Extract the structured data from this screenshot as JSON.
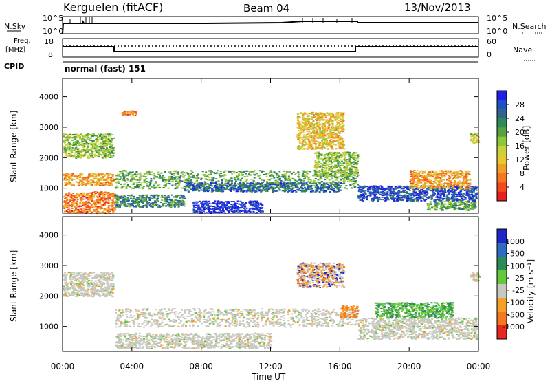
{
  "header": {
    "station": "Kerguelen (fitACF)",
    "beam": "Beam 04",
    "date": "13/Nov/2013"
  },
  "strip_labels": {
    "nsky": "N.Sky",
    "nsky_ticks": [
      "10^5",
      "10^0"
    ],
    "nsearch": "N.Search",
    "nsearch_ticks": [
      "10^5",
      "10^0"
    ],
    "freq_line1": "Freq.",
    "freq_line2": "[MHz]",
    "freq_ticks": [
      "18",
      "8"
    ],
    "nave": "Nave",
    "nave_ticks": [
      "60",
      "0"
    ],
    "cpid": "CPID",
    "cpid_value": "normal (fast) 151"
  },
  "chart_data": [
    {
      "type": "heatmap",
      "name": "power",
      "ylabel": "Slant Range [km]",
      "ylim": [
        180,
        4600
      ],
      "yticks": [
        "1000",
        "2000",
        "3000",
        "4000"
      ],
      "xlim": [
        0,
        24
      ],
      "xticks": [
        "00:00",
        "04:00",
        "08:00",
        "12:00",
        "16:00",
        "20:00",
        "00:00"
      ],
      "colorbar": {
        "label": "Power [dB]",
        "ticks": [
          "28",
          "24",
          "20",
          "16",
          "12",
          "8",
          "4"
        ],
        "colors": [
          "#1e1ee6",
          "#1e50c8",
          "#32648c",
          "#2e8b57",
          "#5aa040",
          "#8cc83c",
          "#c8d23c",
          "#e6c832",
          "#f0a028",
          "#f57820",
          "#f54a1e",
          "#e6201e"
        ]
      },
      "regions": [
        {
          "t": [
            0.0,
            2.9
          ],
          "r": [
            2000,
            2800
          ],
          "level": 6
        },
        {
          "t": [
            0.0,
            2.9
          ],
          "r": [
            1100,
            1500
          ],
          "level": 3
        },
        {
          "t": [
            0.0,
            3.0
          ],
          "r": [
            200,
            900
          ],
          "level": 2
        },
        {
          "t": [
            3.0,
            17.0
          ],
          "r": [
            1000,
            1600
          ],
          "level": 7
        },
        {
          "t": [
            7.0,
            16.0
          ],
          "r": [
            900,
            1200
          ],
          "level": 9
        },
        {
          "t": [
            3.0,
            7.0
          ],
          "r": [
            400,
            800
          ],
          "level": 8
        },
        {
          "t": [
            7.5,
            11.5
          ],
          "r": [
            200,
            600
          ],
          "level": 11
        },
        {
          "t": [
            13.5,
            16.2
          ],
          "r": [
            2300,
            3500
          ],
          "level": 4
        },
        {
          "t": [
            14.5,
            17.0
          ],
          "r": [
            1400,
            2200
          ],
          "level": 6
        },
        {
          "t": [
            17.0,
            23.9
          ],
          "r": [
            600,
            1100
          ],
          "level": 10
        },
        {
          "t": [
            20.0,
            23.5
          ],
          "r": [
            1000,
            1600
          ],
          "level": 3
        },
        {
          "t": [
            21.0,
            23.8
          ],
          "r": [
            300,
            600
          ],
          "level": 7
        },
        {
          "t": [
            23.5,
            24.0
          ],
          "r": [
            2500,
            2800
          ],
          "level": 5
        },
        {
          "t": [
            3.4,
            4.2
          ],
          "r": [
            3400,
            3550
          ],
          "level": 2
        }
      ]
    },
    {
      "type": "heatmap",
      "name": "velocity",
      "ylabel": "Slant Range [km]",
      "ylim": [
        180,
        4600
      ],
      "yticks": [
        "1000",
        "2000",
        "3000",
        "4000"
      ],
      "xlim": [
        0,
        24
      ],
      "xticks": [
        "00:00",
        "04:00",
        "08:00",
        "12:00",
        "16:00",
        "20:00",
        "00:00"
      ],
      "xlabel": "Time UT",
      "colorbar": {
        "label": "Velocity [m s⁻¹]",
        "ticks": [
          "1000",
          "500",
          "100",
          "25",
          "-25",
          "-100",
          "-500",
          "-1000"
        ],
        "colors": [
          "#1e28c8",
          "#2e6cbe",
          "#2e8b57",
          "#64c83c",
          "#c8c8c0",
          "#f5a028",
          "#f57820",
          "#e62820"
        ]
      },
      "regions": [
        {
          "t": [
            0.0,
            2.9
          ],
          "r": [
            2000,
            2800
          ],
          "level": "gs"
        },
        {
          "t": [
            3.0,
            17.0
          ],
          "r": [
            1000,
            1600
          ],
          "level": "gs"
        },
        {
          "t": [
            3.0,
            12.0
          ],
          "r": [
            300,
            800
          ],
          "level": "gs"
        },
        {
          "t": [
            13.5,
            16.2
          ],
          "r": [
            2300,
            3100
          ],
          "level": "mixed"
        },
        {
          "t": [
            16.0,
            17.0
          ],
          "r": [
            1300,
            1700
          ],
          "level": "neg"
        },
        {
          "t": [
            17.0,
            23.9
          ],
          "r": [
            600,
            1300
          ],
          "level": "gs"
        },
        {
          "t": [
            18.0,
            22.5
          ],
          "r": [
            1300,
            1800
          ],
          "level": "pos"
        },
        {
          "t": [
            23.5,
            24.0
          ],
          "r": [
            2500,
            2800
          ],
          "level": "gs"
        }
      ]
    }
  ]
}
